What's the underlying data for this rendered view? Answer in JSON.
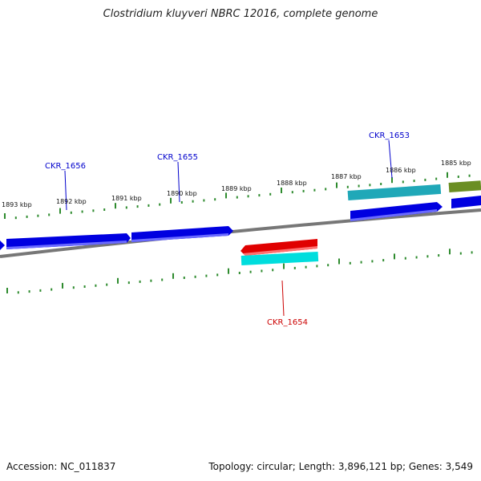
{
  "title": "Clostridium kluyveri NBRC 12016, complete genome",
  "footer": {
    "accession": "Accession: NC_011837",
    "summary": "Topology: circular; Length: 3,896,121 bp; Genes: 3,549"
  },
  "colors": {
    "backbone": "#888888",
    "tick": "#2e8b2e",
    "gene_blue": "#0000e0",
    "gene_red": "#e00000",
    "gene_cyan": "#00cccc",
    "gene_teal": "#20a0b0",
    "gene_olive": "#6b8e23",
    "label_blue": "#0000cc",
    "label_red": "#cc0000"
  },
  "scale_labels": [
    "1893 kbp",
    "1892 kbp",
    "1891 kbp",
    "1890 kbp",
    "1889 kbp",
    "1888 kbp",
    "1887 kbp",
    "1886 kbp",
    "1885 kbp"
  ],
  "gene_labels": [
    {
      "name": "CKR_1656",
      "color": "blue"
    },
    {
      "name": "CKR_1655",
      "color": "blue"
    },
    {
      "name": "CKR_1653",
      "color": "blue"
    },
    {
      "name": "CKR_1654",
      "color": "red"
    }
  ]
}
